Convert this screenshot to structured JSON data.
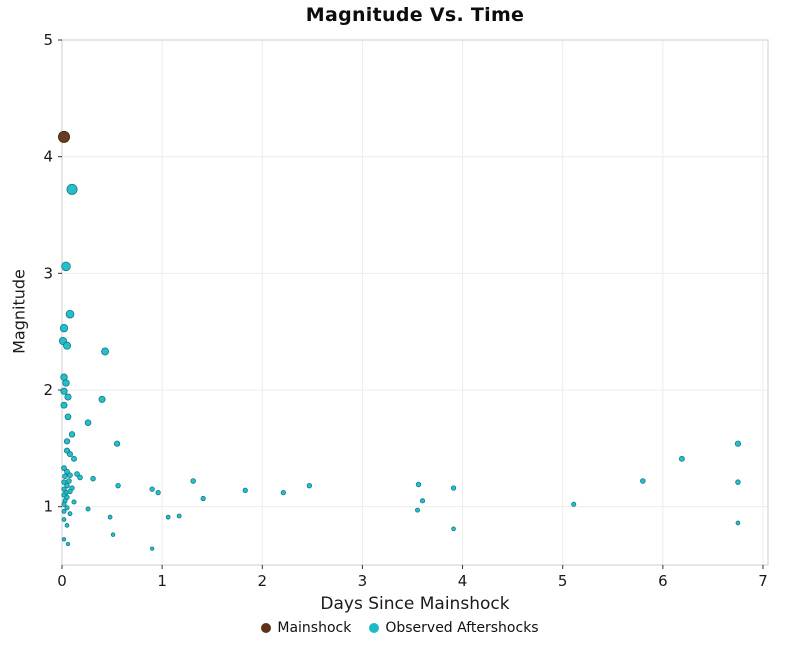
{
  "chart_data": {
    "type": "scatter",
    "title": "Magnitude Vs. Time",
    "xlabel": "Days Since Mainshock",
    "ylabel": "Magnitude",
    "xlim": [
      0,
      7
    ],
    "ylim": [
      0.5,
      5
    ],
    "x_ticks": [
      0,
      1,
      2,
      3,
      4,
      5,
      6,
      7
    ],
    "y_ticks": [
      1,
      2,
      3,
      4,
      5
    ],
    "grid": true,
    "legend_position": "bottom",
    "grid_color": "#ececec",
    "border_color": "#d4d4d4",
    "tick_color": "#333333",
    "series": [
      {
        "name": "Mainshock",
        "color": "#5C3317",
        "stroke": "#3A200C",
        "points": [
          [
            0.02,
            4.17
          ]
        ]
      },
      {
        "name": "Observed Aftershocks",
        "color": "#1CB9C8",
        "stroke": "#0E7C86",
        "points": [
          [
            0.1,
            3.72
          ],
          [
            0.04,
            3.06
          ],
          [
            0.08,
            2.65
          ],
          [
            0.02,
            2.53
          ],
          [
            0.01,
            2.42
          ],
          [
            0.05,
            2.38
          ],
          [
            0.43,
            2.33
          ],
          [
            0.02,
            2.11
          ],
          [
            0.04,
            2.06
          ],
          [
            0.02,
            1.99
          ],
          [
            0.06,
            1.94
          ],
          [
            0.4,
            1.92
          ],
          [
            0.02,
            1.87
          ],
          [
            0.06,
            1.77
          ],
          [
            0.26,
            1.72
          ],
          [
            0.1,
            1.62
          ],
          [
            0.05,
            1.56
          ],
          [
            0.55,
            1.54
          ],
          [
            6.75,
            1.54
          ],
          [
            0.05,
            1.48
          ],
          [
            0.08,
            1.45
          ],
          [
            0.12,
            1.41
          ],
          [
            6.19,
            1.41
          ],
          [
            0.02,
            1.33
          ],
          [
            0.05,
            1.3
          ],
          [
            0.08,
            1.27
          ],
          [
            0.15,
            1.28
          ],
          [
            0.03,
            1.26
          ],
          [
            0.18,
            1.25
          ],
          [
            0.31,
            1.24
          ],
          [
            0.07,
            1.22
          ],
          [
            1.31,
            1.22
          ],
          [
            5.8,
            1.22
          ],
          [
            0.02,
            1.21
          ],
          [
            6.75,
            1.21
          ],
          [
            0.05,
            1.18
          ],
          [
            0.56,
            1.18
          ],
          [
            2.47,
            1.18
          ],
          [
            3.56,
            1.19
          ],
          [
            0.1,
            1.16
          ],
          [
            3.91,
            1.16
          ],
          [
            0.02,
            1.15
          ],
          [
            0.9,
            1.15
          ],
          [
            1.83,
            1.14
          ],
          [
            0.08,
            1.13
          ],
          [
            0.04,
            1.12
          ],
          [
            2.21,
            1.12
          ],
          [
            0.96,
            1.12
          ],
          [
            0.02,
            1.1
          ],
          [
            0.05,
            1.08
          ],
          [
            1.41,
            1.07
          ],
          [
            0.03,
            1.05
          ],
          [
            3.6,
            1.05
          ],
          [
            0.12,
            1.04
          ],
          [
            0.02,
            1.02
          ],
          [
            5.11,
            1.02
          ],
          [
            0.05,
            0.99
          ],
          [
            0.26,
            0.98
          ],
          [
            3.55,
            0.97
          ],
          [
            0.02,
            0.96
          ],
          [
            0.08,
            0.94
          ],
          [
            0.48,
            0.91
          ],
          [
            1.06,
            0.91
          ],
          [
            1.17,
            0.92
          ],
          [
            0.02,
            0.89
          ],
          [
            6.75,
            0.86
          ],
          [
            0.05,
            0.84
          ],
          [
            3.91,
            0.81
          ],
          [
            0.51,
            0.76
          ],
          [
            0.02,
            0.72
          ],
          [
            0.06,
            0.68
          ],
          [
            0.9,
            0.64
          ]
        ]
      }
    ]
  }
}
